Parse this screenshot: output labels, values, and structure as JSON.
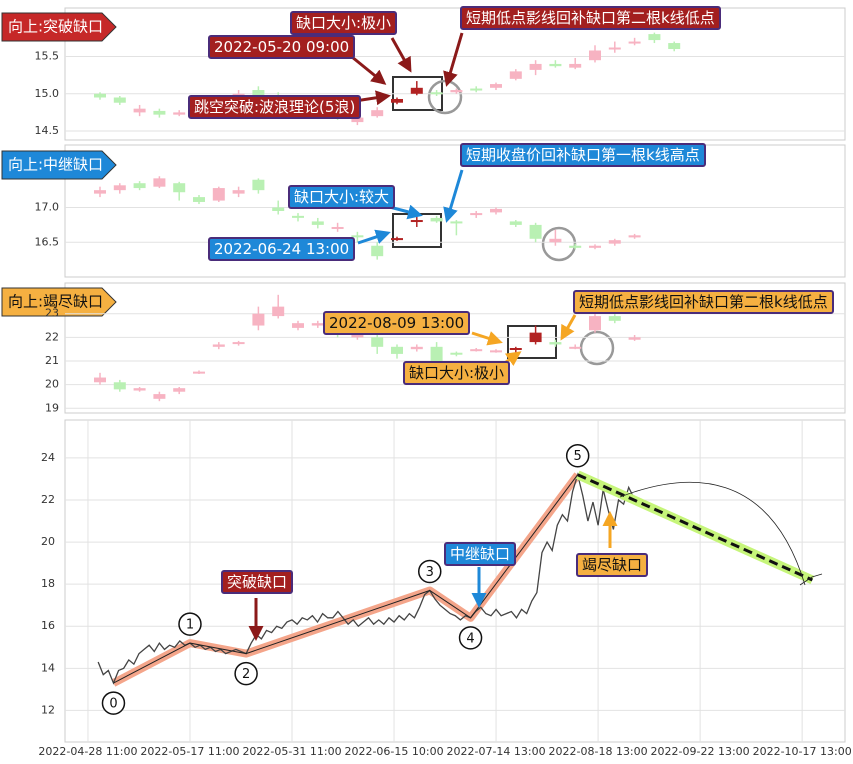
{
  "chart_data": [
    {
      "type": "candlestick",
      "tag": "向上:突破缺口",
      "tag_color": "#c62828",
      "label_color": "#a31f1f",
      "ylim": [
        14.38,
        16.15
      ],
      "yticks": [
        14.5,
        {
          "value": 15,
          "label": "15.0"
        },
        15.5
      ],
      "open": [
        15.0,
        14.95,
        14.75,
        14.77,
        14.72,
        14.75,
        14.85,
        14.95,
        15.05,
        14.98,
        14.9,
        14.85,
        14.75,
        14.62,
        14.7,
        14.88,
        15.0,
        15.02,
        15.02,
        15.07,
        15.08,
        15.2,
        15.32,
        15.4,
        15.35,
        15.45,
        15.6,
        15.68,
        15.8,
        15.68
      ],
      "close": [
        14.95,
        14.88,
        14.8,
        14.72,
        14.75,
        14.82,
        14.9,
        15.0,
        14.98,
        14.95,
        14.93,
        14.8,
        14.7,
        14.68,
        14.78,
        14.93,
        15.08,
        15.0,
        15.05,
        15.05,
        15.13,
        15.3,
        15.4,
        15.37,
        15.4,
        15.58,
        15.62,
        15.7,
        15.72,
        15.6
      ],
      "high": [
        15.02,
        14.97,
        14.85,
        14.8,
        14.78,
        14.88,
        14.95,
        15.05,
        15.1,
        15.02,
        14.98,
        14.9,
        14.8,
        14.7,
        14.82,
        14.95,
        15.17,
        15.05,
        15.07,
        15.1,
        15.15,
        15.33,
        15.45,
        15.45,
        15.48,
        15.65,
        15.7,
        15.75,
        15.82,
        15.7
      ],
      "low": [
        14.92,
        14.85,
        14.7,
        14.68,
        14.7,
        14.72,
        14.8,
        14.9,
        14.95,
        14.9,
        14.85,
        14.75,
        14.65,
        14.58,
        14.68,
        14.86,
        14.98,
        14.97,
        15.0,
        15.02,
        15.05,
        15.18,
        15.25,
        15.35,
        15.33,
        15.42,
        15.55,
        15.65,
        15.68,
        15.57
      ],
      "highlight": [
        15,
        16
      ],
      "up_color": "#f7b3c2",
      "down_color": "#b9f0b3",
      "highlight_color": "#b22222",
      "annotations": [
        "缺口大小:极小",
        "2022-05-20 09:00",
        "跳空突破:波浪理论(5浪)",
        "短期低点影线回补缺口第二根k线低点"
      ]
    },
    {
      "type": "candlestick",
      "tag": "向上:中继缺口",
      "tag_color": "#1e88d8",
      "label_color": "#1e88d8",
      "ylim": [
        16.0,
        17.9
      ],
      "yticks": [
        16.5,
        {
          "value": 17,
          "label": "17.0"
        }
      ],
      "open": [
        17.2,
        17.25,
        17.35,
        17.3,
        17.35,
        17.15,
        17.1,
        17.2,
        17.4,
        17.0,
        16.88,
        16.8,
        16.7,
        16.6,
        16.45,
        16.55,
        16.8,
        16.85,
        16.8,
        16.9,
        16.93,
        16.8,
        16.75,
        16.5,
        16.45,
        16.42,
        16.48,
        16.57
      ],
      "close": [
        17.25,
        17.32,
        17.28,
        17.42,
        17.22,
        17.08,
        17.28,
        17.25,
        17.25,
        16.95,
        16.86,
        16.75,
        16.72,
        16.58,
        16.3,
        16.56,
        16.82,
        16.8,
        16.78,
        16.92,
        16.98,
        16.75,
        16.55,
        16.55,
        16.42,
        16.45,
        16.53,
        16.6
      ],
      "high": [
        17.3,
        17.35,
        17.38,
        17.45,
        17.37,
        17.18,
        17.3,
        17.3,
        17.42,
        17.1,
        16.92,
        16.85,
        16.78,
        16.65,
        16.5,
        16.58,
        16.88,
        16.88,
        16.82,
        16.95,
        17.0,
        16.82,
        16.78,
        16.68,
        16.48,
        16.47,
        16.55,
        16.62
      ],
      "low": [
        17.15,
        17.2,
        17.25,
        17.28,
        17.1,
        17.05,
        17.08,
        17.15,
        17.2,
        16.9,
        16.8,
        16.7,
        16.65,
        16.5,
        16.25,
        16.52,
        16.72,
        16.78,
        16.6,
        16.85,
        16.9,
        16.72,
        16.5,
        16.45,
        16.4,
        16.4,
        16.45,
        16.55
      ],
      "highlight": [
        15,
        16
      ],
      "up_color": "#f7b3c2",
      "down_color": "#b9f0b3",
      "highlight_color": "#b22222",
      "annotations": [
        "缺口大小:较大",
        "2022-06-24 13:00",
        "短期收盘价回补缺口第一根k线高点"
      ]
    },
    {
      "type": "candlestick",
      "tag": "向上:竭尽缺口",
      "tag_color": "#f5b041",
      "label_color": "#f5b041",
      "ylim": [
        18.8,
        24.3
      ],
      "yticks": [
        19,
        20,
        21,
        22,
        23
      ],
      "open": [
        20.1,
        20.1,
        19.75,
        19.4,
        19.7,
        20.5,
        21.6,
        21.75,
        22.5,
        22.9,
        22.4,
        22.5,
        22.3,
        22.0,
        22.0,
        21.6,
        21.5,
        21.6,
        21.35,
        21.45,
        21.4,
        21.5,
        21.8,
        21.8,
        21.55,
        22.3,
        22.9,
        21.9
      ],
      "close": [
        20.3,
        19.8,
        19.85,
        19.6,
        19.85,
        20.55,
        21.7,
        21.8,
        23.0,
        23.3,
        22.6,
        22.6,
        22.1,
        22.2,
        21.6,
        21.3,
        21.6,
        20.9,
        21.3,
        21.5,
        21.45,
        21.55,
        22.2,
        21.7,
        21.6,
        22.9,
        22.7,
        22.0
      ],
      "high": [
        20.5,
        20.2,
        19.9,
        19.7,
        19.9,
        20.6,
        21.8,
        21.85,
        23.3,
        23.8,
        22.7,
        22.7,
        22.4,
        22.3,
        22.1,
        21.7,
        21.7,
        21.8,
        21.4,
        21.55,
        21.5,
        21.6,
        22.5,
        21.9,
        21.7,
        23.1,
        23.0,
        22.1
      ],
      "low": [
        20.0,
        19.7,
        19.7,
        19.3,
        19.6,
        20.45,
        21.5,
        21.65,
        22.3,
        22.8,
        22.3,
        22.4,
        22.0,
        21.9,
        21.3,
        21.1,
        21.4,
        20.8,
        21.2,
        21.4,
        21.35,
        21.3,
        21.7,
        21.6,
        21.5,
        22.2,
        22.6,
        21.85
      ],
      "highlight": [
        21,
        22
      ],
      "up_color": "#f7b3c2",
      "down_color": "#b9f0b3",
      "highlight_color": "#b22222",
      "annotations": [
        "2022-08-09 13:00",
        "缺口大小:极小",
        "短期低点影线回补缺口第二根k线低点"
      ]
    },
    {
      "type": "line",
      "color": "#444444",
      "xlim": [
        -4.5,
        148.4
      ],
      "ylim": [
        10.5,
        25.8
      ],
      "yticks": [
        12,
        14,
        16,
        18,
        20,
        22,
        24
      ],
      "xticks": [
        {
          "value": 0,
          "label": "2022-04-28 11:00"
        },
        {
          "value": 20,
          "label": "2022-05-17 11:00"
        },
        {
          "value": 40,
          "label": "2022-05-31 11:00"
        },
        {
          "value": 60,
          "label": "2022-06-15 10:00"
        },
        {
          "value": 80,
          "label": "2022-07-14 13:00"
        },
        {
          "value": 100,
          "label": "2022-08-18 13:00"
        },
        {
          "value": 120,
          "label": "2022-09-22 13:00"
        },
        {
          "value": 140,
          "label": "2022-10-17 13:00"
        }
      ],
      "x": [
        2,
        3,
        4,
        5,
        6,
        7,
        8,
        9,
        10,
        11,
        12,
        13,
        14,
        15,
        16,
        17,
        18,
        19,
        20,
        21,
        22,
        23,
        24,
        25,
        26,
        27,
        28,
        29,
        30,
        31,
        32,
        33,
        34,
        35,
        36,
        37,
        38,
        39,
        40,
        41,
        42,
        43,
        44,
        45,
        46,
        47,
        48,
        49,
        50,
        51,
        52,
        53,
        54,
        55,
        56,
        57,
        58,
        59,
        60,
        61,
        62,
        63,
        64,
        65,
        66,
        67,
        68,
        69,
        70,
        71,
        72,
        73,
        74,
        75,
        76,
        77,
        78,
        79,
        80,
        81,
        82,
        83,
        84,
        85,
        86,
        87,
        88,
        89,
        90,
        91,
        92,
        93,
        94,
        95,
        96,
        97,
        98,
        99,
        100,
        101,
        102,
        103,
        104,
        105,
        106,
        107
      ],
      "values": [
        14.3,
        13.7,
        13.9,
        13.3,
        13.9,
        14.0,
        14.4,
        14.2,
        14.7,
        14.9,
        15.1,
        14.8,
        15.2,
        14.9,
        15.1,
        15.0,
        15.3,
        15.1,
        15.2,
        15.0,
        15.1,
        14.9,
        15.0,
        14.8,
        14.9,
        14.7,
        14.8,
        14.9,
        14.8,
        14.7,
        15.2,
        15.6,
        15.4,
        15.8,
        15.7,
        16.0,
        15.9,
        16.2,
        16.3,
        16.1,
        16.4,
        16.3,
        16.5,
        16.2,
        16.6,
        16.4,
        16.4,
        16.7,
        16.4,
        16.1,
        16.3,
        16.0,
        16.2,
        16.4,
        16.1,
        16.3,
        16.1,
        16.4,
        16.2,
        16.5,
        16.3,
        16.6,
        16.4,
        16.9,
        17.5,
        17.7,
        17.3,
        17.0,
        16.8,
        16.6,
        16.5,
        16.3,
        16.5,
        16.4,
        16.7,
        16.9,
        16.6,
        16.5,
        16.8,
        16.5,
        16.6,
        16.7,
        16.4,
        16.8,
        16.6,
        17.2,
        17.6,
        19.5,
        20.0,
        19.6,
        20.8,
        21.3,
        21.0,
        22.4,
        23.2,
        22.2,
        21.0,
        21.9,
        20.8,
        22.5,
        21.5,
        20.6,
        22.0,
        21.8,
        22.6,
        22.1
      ],
      "wave": {
        "x": [
          5,
          20,
          31,
          67,
          75,
          96
        ],
        "values": [
          13.3,
          15.2,
          14.7,
          17.7,
          16.4,
          23.2
        ],
        "labels": [
          "0",
          "1",
          "2",
          "3",
          "4",
          "5"
        ],
        "color": "#f4a58a"
      },
      "forecast": {
        "x": [
          96,
          142
        ],
        "values": [
          23.2,
          18.2
        ],
        "color": "#c6f57a"
      },
      "annotations": [
        "突破缺口",
        "中继缺口",
        "竭尽缺口"
      ]
    }
  ]
}
